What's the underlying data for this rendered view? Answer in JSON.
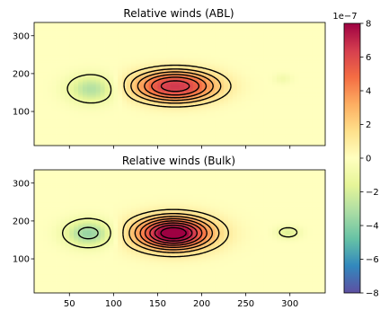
{
  "chart_data": [
    {
      "type": "heatmap",
      "title": "Relative winds (ABL)",
      "xlim": [
        10,
        340
      ],
      "ylim": [
        10,
        335
      ],
      "xticks": [
        50,
        100,
        150,
        200,
        250,
        300
      ],
      "xtick_labels": [
        "",
        "",
        "",
        "",
        "",
        ""
      ],
      "yticks": [
        100,
        200,
        300
      ],
      "ytick_labels": [
        "100",
        "200",
        "300"
      ],
      "field": {
        "features": [
          {
            "kind": "positive_maximum",
            "x": 170,
            "y": 167,
            "peak": 6.5e-07
          },
          {
            "kind": "negative_minimum",
            "x": 75,
            "y": 160,
            "peak": -3e-07
          },
          {
            "kind": "negative_minimum",
            "x": 292,
            "y": 187,
            "peak": -8e-08
          }
        ]
      },
      "contour_style": {
        "negative": "dashed",
        "positive": "solid",
        "color": "#000000"
      }
    },
    {
      "type": "heatmap",
      "title": "Relative winds (Bulk)",
      "xlim": [
        10,
        340
      ],
      "ylim": [
        10,
        335
      ],
      "xticks": [
        50,
        100,
        150,
        200,
        250,
        300
      ],
      "xtick_labels": [
        "50",
        "100",
        "150",
        "200",
        "250",
        "300"
      ],
      "yticks": [
        100,
        200,
        300
      ],
      "ytick_labels": [
        "100",
        "200",
        "300"
      ],
      "field": {
        "features": [
          {
            "kind": "positive_maximum",
            "x": 168,
            "y": 168,
            "peak": 9e-07
          },
          {
            "kind": "negative_minimum",
            "x": 72,
            "y": 168,
            "peak": -3.7e-07
          },
          {
            "kind": "negative_minimum",
            "x": 298,
            "y": 170,
            "peak": -1.8e-07
          }
        ]
      },
      "contour_style": {
        "negative": "dashed",
        "positive": "solid",
        "color": "#000000"
      }
    }
  ],
  "colorbar": {
    "colormap": "Spectral_r",
    "range": [
      -8,
      8
    ],
    "ticks": [
      -8,
      -6,
      -4,
      -2,
      0,
      2,
      4,
      6,
      8
    ],
    "tick_labels": [
      "−8",
      "−6",
      "−4",
      "−2",
      "0",
      "2",
      "4",
      "6",
      "8"
    ],
    "exponent_label": "1e−7"
  }
}
